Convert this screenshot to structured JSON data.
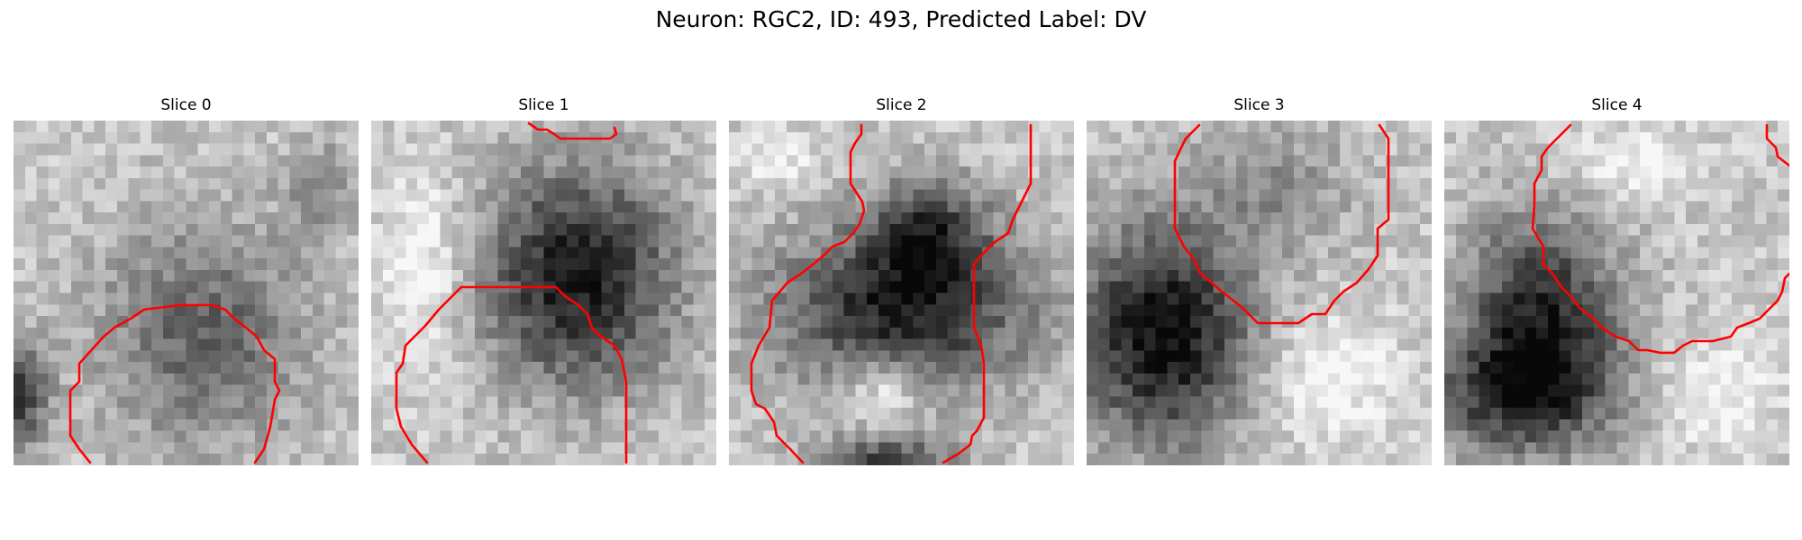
{
  "figure": {
    "title": "Neuron: RGC2, ID: 493, Predicted Label: DV",
    "contour_color": "#ff0000",
    "grid_cells": 30,
    "panels": [
      {
        "title": "Slice 0"
      },
      {
        "title": "Slice 1"
      },
      {
        "title": "Slice 2"
      },
      {
        "title": "Slice 3"
      },
      {
        "title": "Slice 4"
      }
    ]
  }
}
